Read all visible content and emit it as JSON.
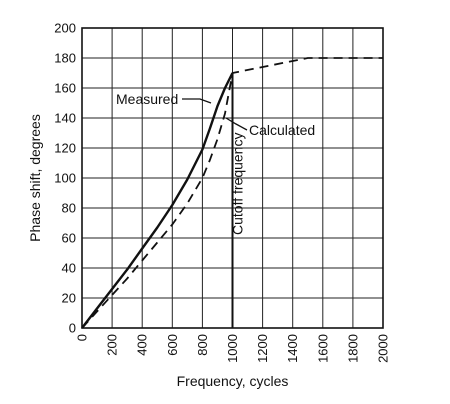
{
  "chart_data": {
    "type": "line",
    "title": "",
    "xlabel": "Frequency, cycles",
    "ylabel": "Phase shift, degrees",
    "xlim": [
      0,
      2000
    ],
    "ylim": [
      0,
      200
    ],
    "x_ticks": [
      0,
      200,
      400,
      600,
      800,
      1000,
      1200,
      1400,
      1600,
      1800,
      2000
    ],
    "x_tick_labels": [
      "0",
      "200",
      "400",
      "600",
      "800",
      "1000",
      "1200",
      "1400",
      "1600",
      "1800",
      "2000"
    ],
    "y_ticks": [
      0,
      20,
      40,
      60,
      80,
      100,
      120,
      140,
      160,
      180,
      200
    ],
    "y_tick_labels": [
      "0",
      "20",
      "40",
      "60",
      "80",
      "100",
      "120",
      "140",
      "160",
      "180",
      "200"
    ],
    "grid": true,
    "legend": "none",
    "series": [
      {
        "name": "Measured",
        "style": "solid",
        "x": [
          0,
          100,
          200,
          300,
          400,
          500,
          600,
          700,
          800,
          850,
          900,
          950,
          1000
        ],
        "y": [
          0,
          13,
          26,
          39,
          53,
          67,
          82,
          99,
          119,
          133,
          148,
          160,
          170
        ]
      },
      {
        "name": "Calculated",
        "style": "dashed",
        "x": [
          0,
          100,
          200,
          300,
          400,
          500,
          600,
          700,
          800,
          850,
          900,
          950,
          1000,
          1500,
          2000
        ],
        "y": [
          0,
          11,
          22,
          33,
          45,
          57,
          69,
          83,
          100,
          112,
          126,
          143,
          170,
          180,
          180
        ]
      }
    ],
    "annotations": [
      {
        "text": "Measured",
        "points_to_series": "Measured"
      },
      {
        "text": "Calculated",
        "points_to_series": "Calculated"
      },
      {
        "text": "Cutoff frequency",
        "x": 1000
      }
    ],
    "style": {
      "line_color": "#111111",
      "grid_color": "#222222",
      "background": "#ffffff"
    }
  }
}
